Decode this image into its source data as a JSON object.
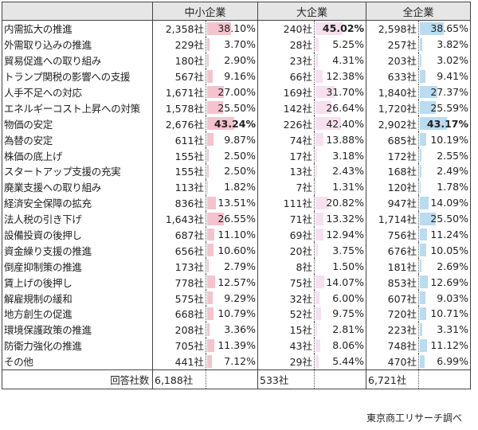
{
  "headers": [
    "中小企業",
    "大企業",
    "全企業"
  ],
  "colors": {
    "sme_bar": "#f5c3cd",
    "large_bar": "#f7e0ee",
    "all_bar": "#b9dcf1"
  },
  "rows": [
    {
      "label": "内需拡大の推進",
      "v": [
        [
          "2,358社",
          "38.10%"
        ],
        [
          "240社",
          "45.02%"
        ],
        [
          "2,598社",
          "38.65%"
        ]
      ]
    },
    {
      "label": "外需取り込みの推進",
      "v": [
        [
          "229社",
          "3.70%"
        ],
        [
          "28社",
          "5.25%"
        ],
        [
          "257社",
          "3.82%"
        ]
      ]
    },
    {
      "label": "貿易促進への取り組み",
      "v": [
        [
          "180社",
          "2.90%"
        ],
        [
          "23社",
          "4.31%"
        ],
        [
          "203社",
          "3.02%"
        ]
      ]
    },
    {
      "label": "トランプ関税の影響への支援",
      "v": [
        [
          "567社",
          "9.16%"
        ],
        [
          "66社",
          "12.38%"
        ],
        [
          "633社",
          "9.41%"
        ]
      ]
    },
    {
      "label": "人手不足への対応",
      "v": [
        [
          "1,671社",
          "27.00%"
        ],
        [
          "169社",
          "31.70%"
        ],
        [
          "1,840社",
          "27.37%"
        ]
      ]
    },
    {
      "label": "エネルギーコスト上昇への対策",
      "v": [
        [
          "1,578社",
          "25.50%"
        ],
        [
          "142社",
          "26.64%"
        ],
        [
          "1,720社",
          "25.59%"
        ]
      ]
    },
    {
      "label": "物価の安定",
      "v": [
        [
          "2,676社",
          "43.24%"
        ],
        [
          "226社",
          "42.40%"
        ],
        [
          "2,902社",
          "43.17%"
        ]
      ]
    },
    {
      "label": "為替の安定",
      "v": [
        [
          "611社",
          "9.87%"
        ],
        [
          "74社",
          "13.88%"
        ],
        [
          "685社",
          "10.19%"
        ]
      ]
    },
    {
      "label": "株価の底上げ",
      "v": [
        [
          "155社",
          "2.50%"
        ],
        [
          "17社",
          "3.18%"
        ],
        [
          "172社",
          "2.55%"
        ]
      ]
    },
    {
      "label": "スタートアップ支援の充実",
      "v": [
        [
          "155社",
          "2.50%"
        ],
        [
          "13社",
          "2.43%"
        ],
        [
          "168社",
          "2.49%"
        ]
      ]
    },
    {
      "label": "廃業支援への取り組み",
      "v": [
        [
          "113社",
          "1.82%"
        ],
        [
          "7社",
          "1.31%"
        ],
        [
          "120社",
          "1.78%"
        ]
      ]
    },
    {
      "label": "経済安全保障の拡充",
      "v": [
        [
          "836社",
          "13.51%"
        ],
        [
          "111社",
          "20.82%"
        ],
        [
          "947社",
          "14.09%"
        ]
      ]
    },
    {
      "label": "法人税の引き下げ",
      "v": [
        [
          "1,643社",
          "26.55%"
        ],
        [
          "71社",
          "13.32%"
        ],
        [
          "1,714社",
          "25.50%"
        ]
      ]
    },
    {
      "label": "設備投資の後押し",
      "v": [
        [
          "687社",
          "11.10%"
        ],
        [
          "69社",
          "12.94%"
        ],
        [
          "756社",
          "11.24%"
        ]
      ]
    },
    {
      "label": "資金繰り支援の推進",
      "v": [
        [
          "656社",
          "10.60%"
        ],
        [
          "20社",
          "3.75%"
        ],
        [
          "676社",
          "10.05%"
        ]
      ]
    },
    {
      "label": "倒産抑制策の推進",
      "v": [
        [
          "173社",
          "2.79%"
        ],
        [
          "8社",
          "1.50%"
        ],
        [
          "181社",
          "2.69%"
        ]
      ]
    },
    {
      "label": "賃上げの後押し",
      "v": [
        [
          "778社",
          "12.57%"
        ],
        [
          "75社",
          "14.07%"
        ],
        [
          "853社",
          "12.69%"
        ]
      ]
    },
    {
      "label": "解雇規制の緩和",
      "v": [
        [
          "575社",
          "9.29%"
        ],
        [
          "32社",
          "6.00%"
        ],
        [
          "607社",
          "9.03%"
        ]
      ]
    },
    {
      "label": "地方創生の促進",
      "v": [
        [
          "668社",
          "10.79%"
        ],
        [
          "52社",
          "9.75%"
        ],
        [
          "720社",
          "10.71%"
        ]
      ]
    },
    {
      "label": "環境保護政策の推進",
      "v": [
        [
          "208社",
          "3.36%"
        ],
        [
          "15社",
          "2.81%"
        ],
        [
          "223社",
          "3.31%"
        ]
      ]
    },
    {
      "label": "防衛力強化の推進",
      "v": [
        [
          "705社",
          "11.39%"
        ],
        [
          "43社",
          "8.06%"
        ],
        [
          "748社",
          "11.12%"
        ]
      ]
    },
    {
      "label": "その他",
      "v": [
        [
          "441社",
          "7.12%"
        ],
        [
          "29社",
          "5.44%"
        ],
        [
          "470社",
          "6.99%"
        ]
      ]
    }
  ],
  "total": {
    "label": "回答社数",
    "v": [
      "6,188社",
      "533社",
      "6,721社"
    ]
  },
  "source": "東京商工リサーチ調べ"
}
